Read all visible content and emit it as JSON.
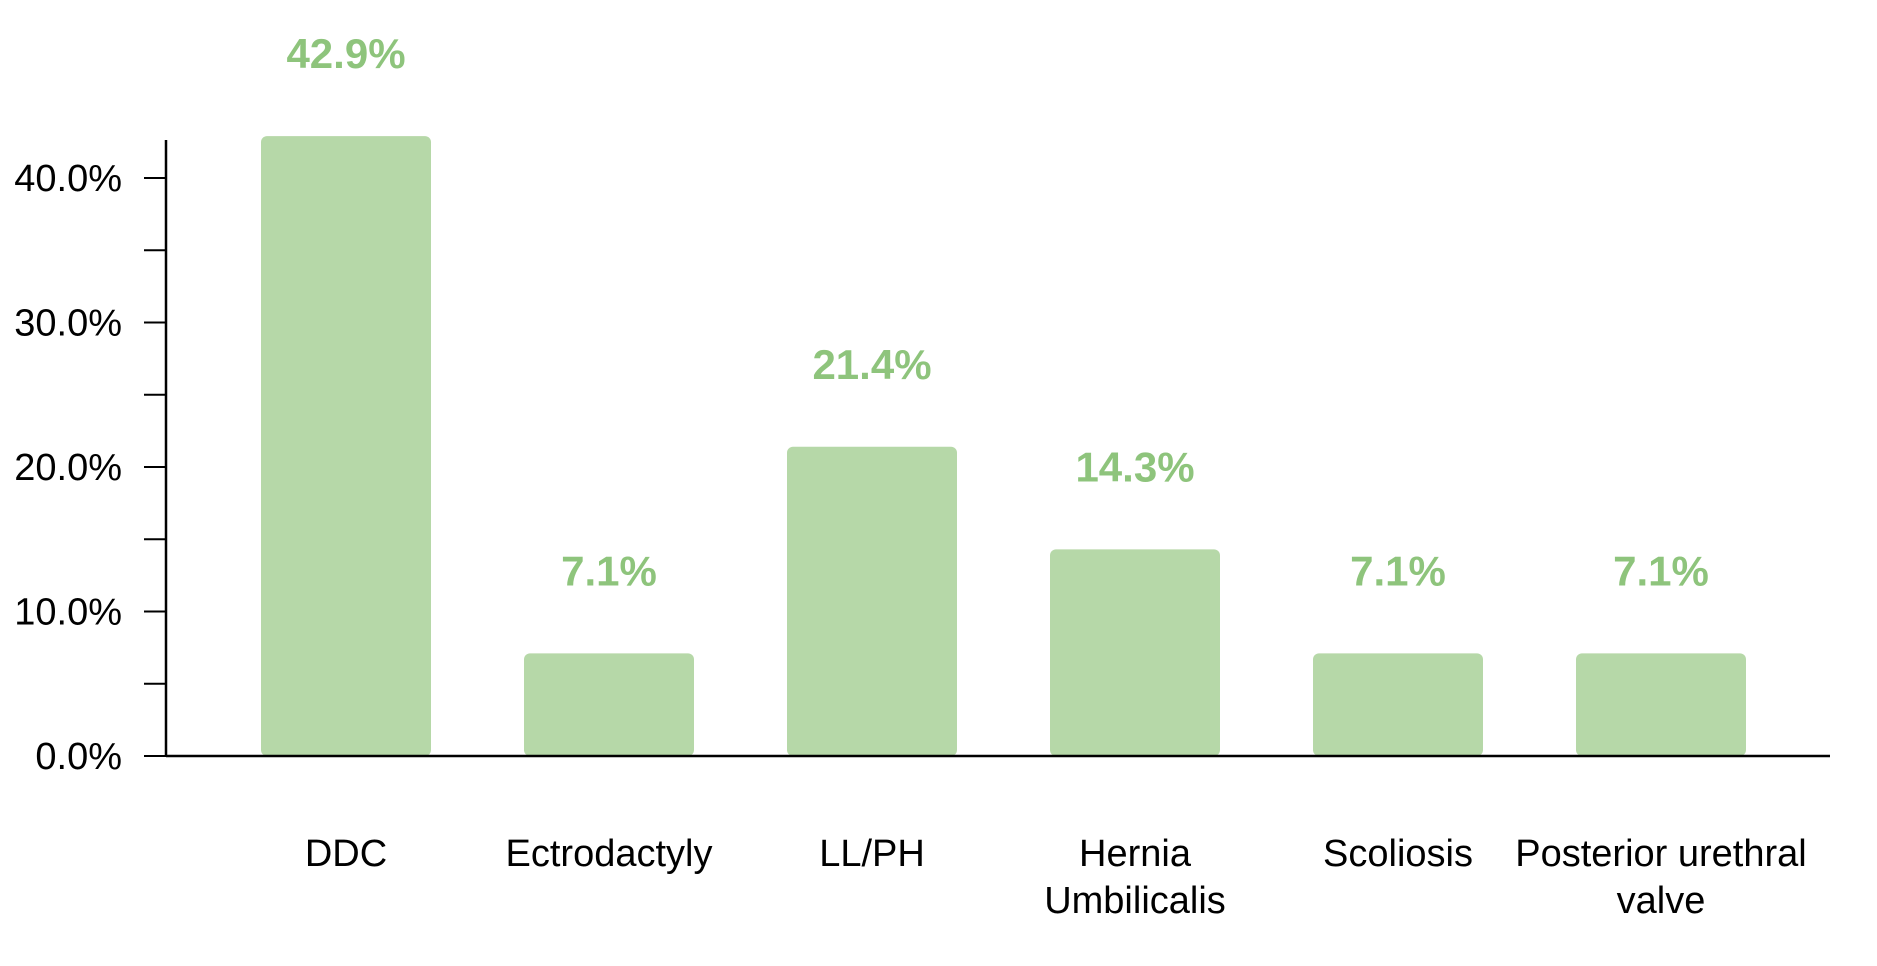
{
  "chart_data": {
    "type": "bar",
    "categories": [
      [
        "DDC"
      ],
      [
        "Ectrodactyly"
      ],
      [
        "LL/PH"
      ],
      [
        "Hernia",
        "Umbilicalis"
      ],
      [
        "Scoliosis"
      ],
      [
        "Posterior urethral",
        "valve"
      ]
    ],
    "values": [
      42.9,
      7.1,
      21.4,
      14.3,
      7.1,
      7.1
    ],
    "data_labels": [
      "42.9%",
      "7.1%",
      "21.4%",
      "14.3%",
      "7.1%",
      "7.1%"
    ],
    "y_ticks": [
      "0.0%",
      "10.0%",
      "20.0%",
      "30.0%",
      "40.0%"
    ],
    "ylim": [
      0,
      40
    ],
    "title": "",
    "xlabel": "",
    "ylabel": "",
    "grid": false,
    "colors": {
      "bar": "#b6d8a8",
      "data_label": "#8ec47c",
      "axis": "#000000",
      "text": "#000000"
    }
  }
}
